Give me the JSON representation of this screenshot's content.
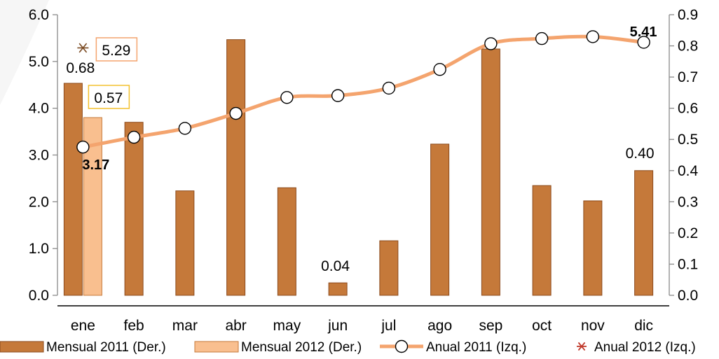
{
  "chart_data": {
    "type": "bar",
    "categories": [
      "ene",
      "feb",
      "mar",
      "abr",
      "may",
      "jun",
      "jul",
      "ago",
      "sep",
      "oct",
      "nov",
      "dic"
    ],
    "y_left": {
      "ticks": [
        "0.0",
        "1.0",
        "2.0",
        "3.0",
        "4.0",
        "5.0",
        "6.0"
      ],
      "min": 0,
      "max": 6
    },
    "y_right": {
      "ticks": [
        "0.0",
        "0.1",
        "0.2",
        "0.3",
        "0.4",
        "0.5",
        "0.6",
        "0.7",
        "0.8",
        "0.9"
      ],
      "min": 0,
      "max": 0.9
    },
    "series": [
      {
        "name": "Mensual 2011 (Der.)",
        "kind": "bar",
        "axis": "right",
        "color": "#c5793a",
        "values": [
          0.68,
          0.555,
          0.335,
          0.82,
          0.345,
          0.04,
          0.175,
          0.485,
          0.79,
          0.352,
          0.303,
          0.4
        ]
      },
      {
        "name": "Mensual 2012 (Der.)",
        "kind": "bar",
        "axis": "right",
        "color": "#f9bf8f",
        "values": [
          0.57,
          null,
          null,
          null,
          null,
          null,
          null,
          null,
          null,
          null,
          null,
          null
        ]
      },
      {
        "name": "Anual 2011 (Izq.)",
        "kind": "line",
        "axis": "left",
        "color": "#f4a46e",
        "values": [
          3.17,
          3.38,
          3.57,
          3.89,
          4.23,
          4.27,
          4.43,
          4.83,
          5.38,
          5.49,
          5.53,
          5.41
        ]
      },
      {
        "name": "Anual 2012 (Izq.)",
        "kind": "marker",
        "axis": "left",
        "color": "#c0392b",
        "values": [
          5.29,
          null,
          null,
          null,
          null,
          null,
          null,
          null,
          null,
          null,
          null,
          null
        ]
      }
    ],
    "data_labels": [
      {
        "text": "0.68",
        "series": 0,
        "index": 0
      },
      {
        "text": "0.57",
        "series": 1,
        "index": 0,
        "boxed": true,
        "box_color": "#f2c02e"
      },
      {
        "text": "5.29",
        "series": 3,
        "index": 0,
        "boxed": true,
        "box_color": "#f4a46e"
      },
      {
        "text": "3.17",
        "series": 2,
        "index": 0,
        "bold": true
      },
      {
        "text": "0.04",
        "series": 0,
        "index": 5
      },
      {
        "text": "0.40",
        "series": 0,
        "index": 11
      },
      {
        "text": "5.41",
        "series": 2,
        "index": 11,
        "bold": true
      }
    ],
    "legend_position": "bottom",
    "grid": false
  }
}
